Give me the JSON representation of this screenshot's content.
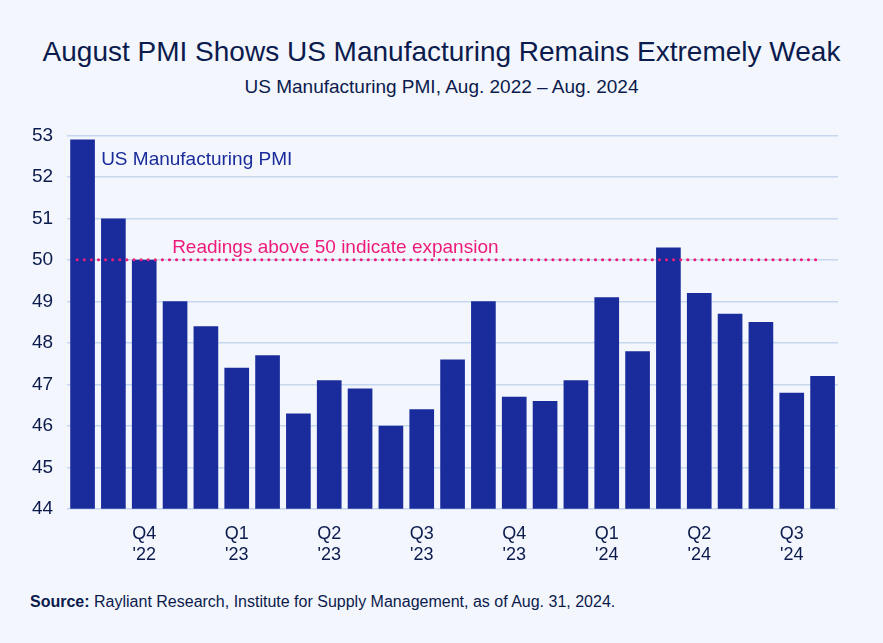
{
  "chart_data": {
    "type": "bar",
    "title": "August PMI Shows US Manufacturing Remains Extremely Weak",
    "subtitle": "US Manufacturing PMI, Aug. 2022 – Aug. 2024",
    "categories": [
      null,
      null,
      "Q4 '22",
      null,
      null,
      "Q1 '23",
      null,
      null,
      "Q2 '23",
      null,
      null,
      "Q3 '23",
      null,
      null,
      "Q4 '23",
      null,
      null,
      "Q1 '24",
      null,
      null,
      "Q2 '24",
      null,
      null,
      "Q3 '24",
      null
    ],
    "series": [
      {
        "name": "US Manufacturing PMI",
        "color": "#1a2c9c",
        "values": [
          52.9,
          51.0,
          50.0,
          49.0,
          48.4,
          47.4,
          47.7,
          46.3,
          47.1,
          46.9,
          46.0,
          46.4,
          47.6,
          49.0,
          46.7,
          46.6,
          47.1,
          49.1,
          47.8,
          50.3,
          49.2,
          48.7,
          48.5,
          46.8,
          47.2
        ]
      }
    ],
    "ylim": [
      44,
      53
    ],
    "yticks": [
      44,
      45,
      46,
      47,
      48,
      49,
      50,
      51,
      52,
      53
    ],
    "grid": true,
    "annotations": [
      {
        "text": "Readings above 50 indicate expansion",
        "y": 50,
        "color": "#ee1b7b",
        "line_style": "dotted"
      }
    ],
    "source": "Source: Rayliant Research, Institute for Supply Management, as of Aug. 31, 2024."
  }
}
